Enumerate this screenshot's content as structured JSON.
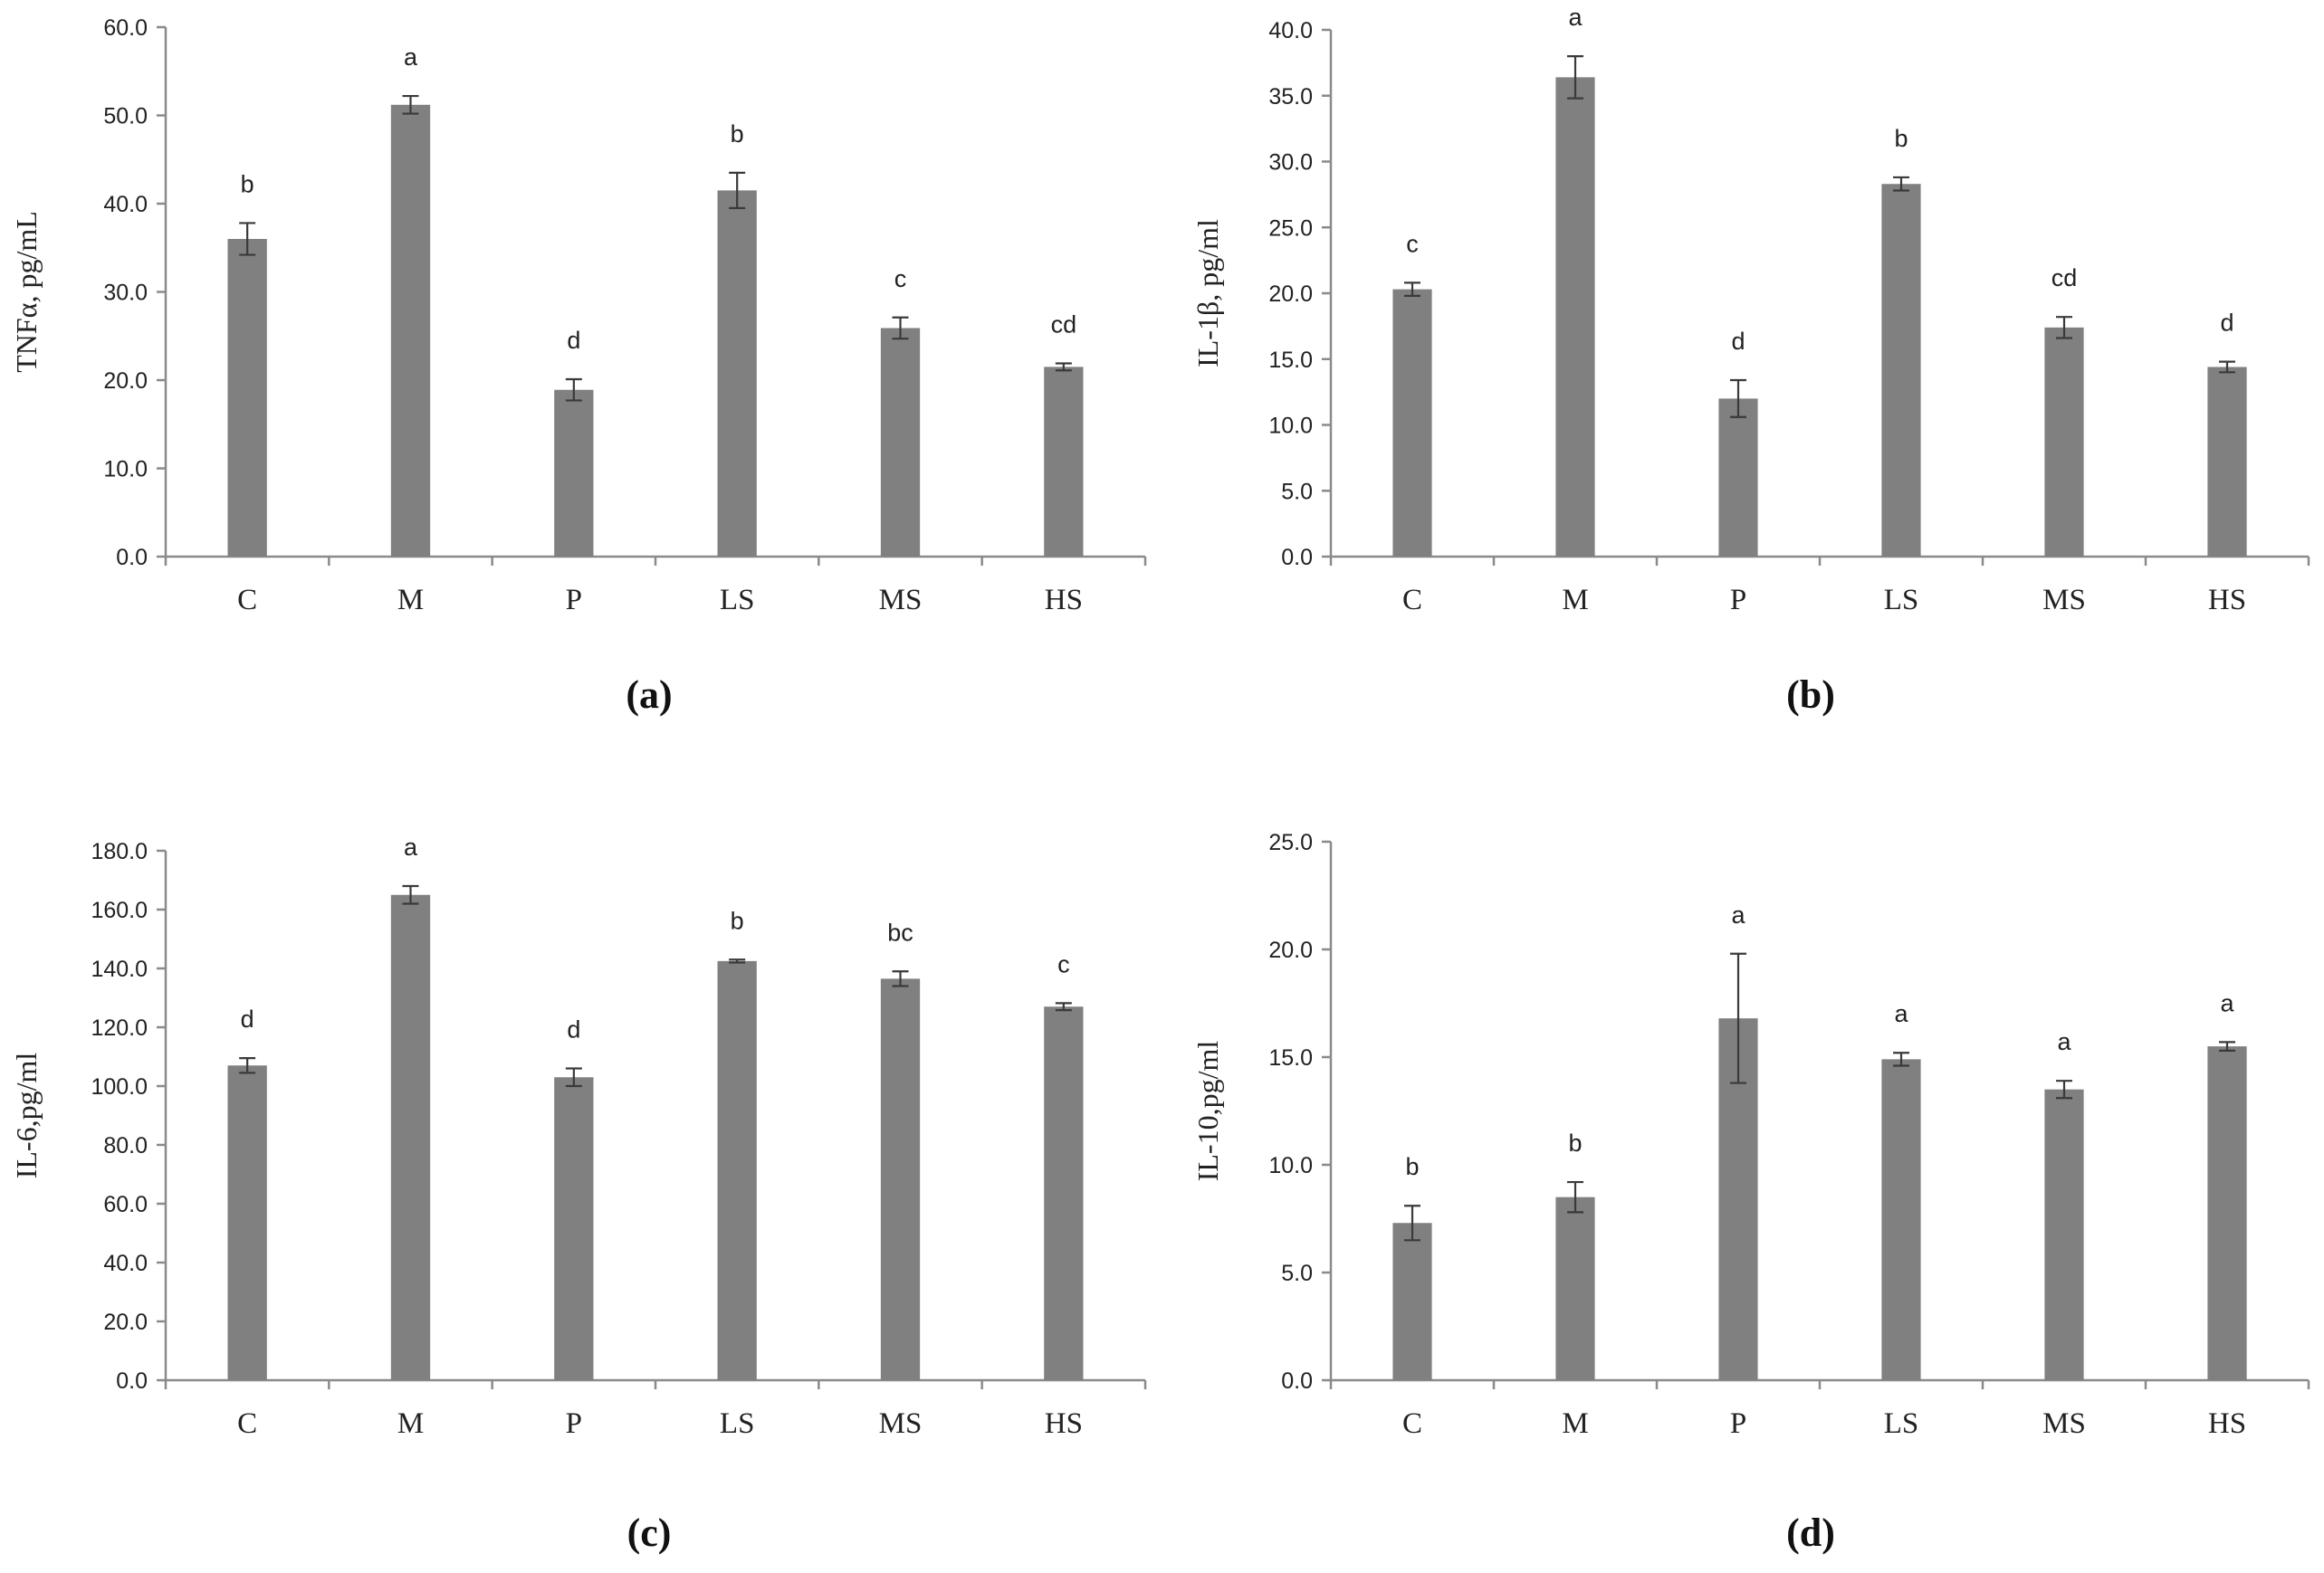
{
  "chart_data": [
    {
      "type": "bar",
      "panel": "(a)",
      "ylabel": "TNFα, pg/mL",
      "ylim": [
        0,
        60
      ],
      "ytick_step": 10,
      "ytick_labels": [
        "0.0",
        "10.0",
        "20.0",
        "30.0",
        "40.0",
        "50.0",
        "60.0"
      ],
      "categories": [
        "C",
        "M",
        "P",
        "LS",
        "MS",
        "HS"
      ],
      "values": [
        36.0,
        51.2,
        18.9,
        41.5,
        25.9,
        21.5
      ],
      "errors": [
        1.8,
        1.0,
        1.2,
        2.0,
        1.2,
        0.4
      ],
      "significance": [
        "b",
        "a",
        "d",
        "b",
        "c",
        "cd"
      ]
    },
    {
      "type": "bar",
      "panel": "(b)",
      "ylabel": "IL-1β, pg/ml",
      "ylim": [
        0,
        40
      ],
      "ytick_step": 5,
      "ytick_labels": [
        "0.0",
        "5.0",
        "10.0",
        "15.0",
        "20.0",
        "25.0",
        "30.0",
        "35.0",
        "40.0"
      ],
      "categories": [
        "C",
        "M",
        "P",
        "LS",
        "MS",
        "HS"
      ],
      "values": [
        20.3,
        36.4,
        12.0,
        28.3,
        17.4,
        14.4
      ],
      "errors": [
        0.5,
        1.6,
        1.4,
        0.5,
        0.8,
        0.4
      ],
      "significance": [
        "c",
        "a",
        "d",
        "b",
        "cd",
        "d"
      ]
    },
    {
      "type": "bar",
      "panel": "(c)",
      "ylabel": "IL-6,pg/ml",
      "ylim": [
        0,
        180
      ],
      "ytick_step": 20,
      "ytick_labels": [
        "0.0",
        "20.0",
        "40.0",
        "60.0",
        "80.0",
        "100.0",
        "120.0",
        "140.0",
        "160.0",
        "180.0"
      ],
      "categories": [
        "C",
        "M",
        "P",
        "LS",
        "MS",
        "HS"
      ],
      "values": [
        107.0,
        165.0,
        103.0,
        142.5,
        136.5,
        127.0
      ],
      "errors": [
        2.5,
        3.0,
        3.0,
        0.5,
        2.5,
        1.2
      ],
      "significance": [
        "d",
        "a",
        "d",
        "b",
        "bc",
        "c"
      ]
    },
    {
      "type": "bar",
      "panel": "(d)",
      "ylabel": "IL-10,pg/ml",
      "ylim": [
        0,
        25
      ],
      "ytick_step": 5,
      "ytick_labels": [
        "0.0",
        "5.0",
        "10.0",
        "15.0",
        "20.0",
        "25.0"
      ],
      "categories": [
        "C",
        "M",
        "P",
        "LS",
        "MS",
        "HS"
      ],
      "values": [
        7.3,
        8.5,
        16.8,
        14.9,
        13.5,
        15.5
      ],
      "errors": [
        0.8,
        0.7,
        3.0,
        0.3,
        0.4,
        0.2
      ],
      "significance": [
        "b",
        "b",
        "a",
        "a",
        "a",
        "a"
      ]
    }
  ]
}
